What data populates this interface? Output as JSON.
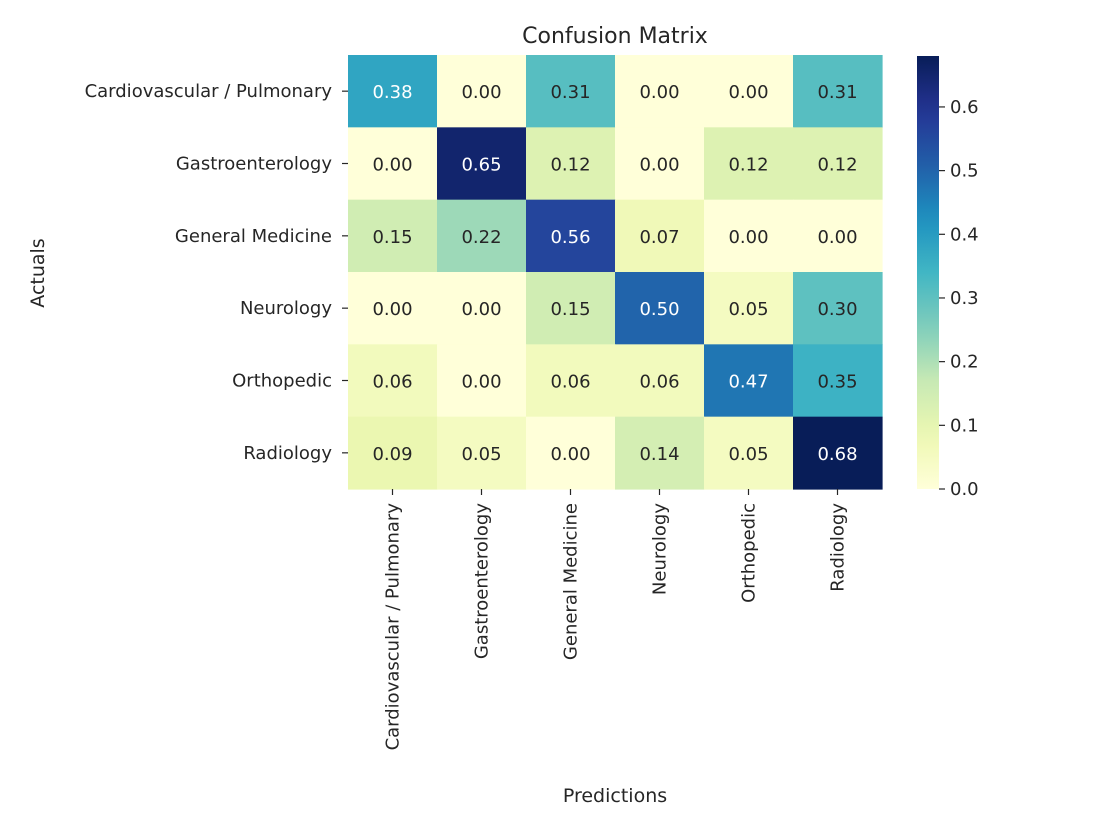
{
  "chart_data": {
    "type": "heatmap",
    "title": "Confusion Matrix",
    "xlabel": "Predictions",
    "ylabel": "Actuals",
    "x_categories": [
      "Cardiovascular / Pulmonary",
      "Gastroenterology",
      "General Medicine",
      "Neurology",
      "Orthopedic",
      "Radiology"
    ],
    "y_categories": [
      "Cardiovascular / Pulmonary",
      "Gastroenterology",
      "General Medicine",
      "Neurology",
      "Orthopedic",
      "Radiology"
    ],
    "values": [
      [
        0.38,
        0.0,
        0.31,
        0.0,
        0.0,
        0.31
      ],
      [
        0.0,
        0.65,
        0.12,
        0.0,
        0.12,
        0.12
      ],
      [
        0.15,
        0.22,
        0.56,
        0.07,
        0.0,
        0.0
      ],
      [
        0.0,
        0.0,
        0.15,
        0.5,
        0.05,
        0.3
      ],
      [
        0.06,
        0.0,
        0.06,
        0.06,
        0.47,
        0.35
      ],
      [
        0.09,
        0.05,
        0.0,
        0.14,
        0.05,
        0.68
      ]
    ],
    "value_format": "0.00",
    "colormap": "YlGnBu",
    "colorbar": {
      "range": [
        0.0,
        0.68
      ],
      "ticks": [
        0.0,
        0.1,
        0.2,
        0.3,
        0.4,
        0.5,
        0.6
      ],
      "tick_labels": [
        "0.0",
        "0.1",
        "0.2",
        "0.3",
        "0.4",
        "0.5",
        "0.6"
      ]
    },
    "grid": false
  }
}
